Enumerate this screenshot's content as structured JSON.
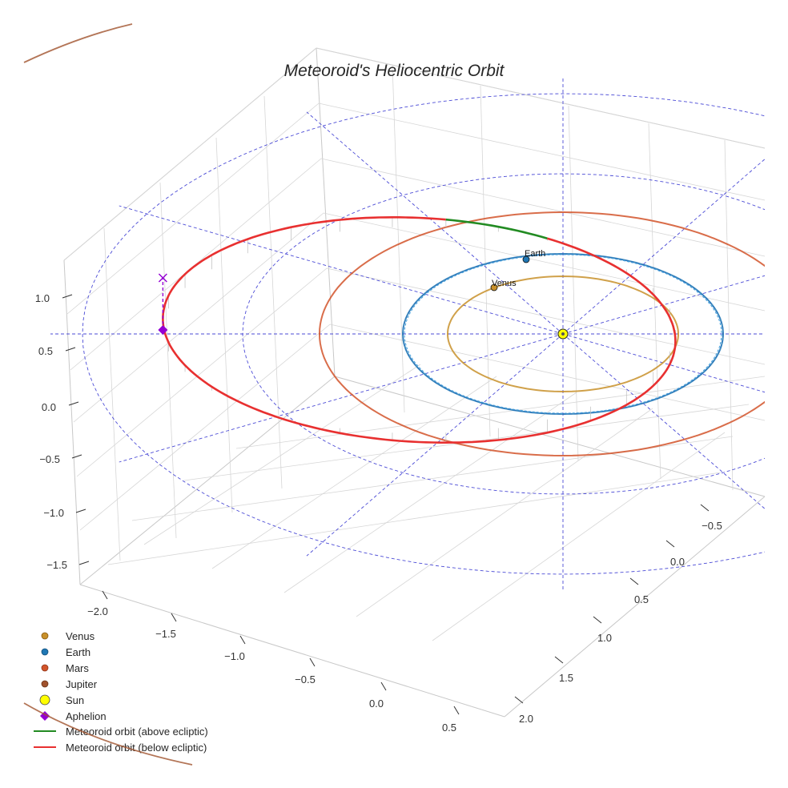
{
  "chart_data": {
    "type": "line",
    "projection": "3d",
    "title": "Meteoroid's Heliocentric Orbit",
    "axes": {
      "x": {
        "ticks": [
          "−2.0",
          "−1.5",
          "−1.0",
          "−0.5",
          "0.0",
          "0.5"
        ],
        "tick_values": [
          -2.0,
          -1.5,
          -1.0,
          -0.5,
          0.0,
          0.5
        ]
      },
      "y": {
        "ticks": [
          "−0.5",
          "0.0",
          "0.5",
          "1.0",
          "1.5",
          "2.0"
        ],
        "tick_values": [
          -0.5,
          0.0,
          0.5,
          1.0,
          1.5,
          2.0
        ]
      },
      "z": {
        "ticks": [
          "1.0",
          "0.5",
          "0.0",
          "−0.5",
          "−1.0",
          "−1.5"
        ],
        "tick_values": [
          1.0,
          0.5,
          0.0,
          -0.5,
          -1.0,
          -1.5
        ]
      }
    },
    "bodies": [
      {
        "name": "Venus",
        "orbit_radius_au": 0.72,
        "color": "#c8902a",
        "label": "Venus"
      },
      {
        "name": "Earth",
        "orbit_radius_au": 1.0,
        "color": "#1f77b4",
        "label": "Earth"
      },
      {
        "name": "Mars",
        "orbit_radius_au": 1.52,
        "color": "#d2542a"
      },
      {
        "name": "Jupiter",
        "orbit_radius_au": 5.2,
        "color": "#a0522d"
      }
    ],
    "sun": {
      "name": "Sun",
      "color": "#ffff00"
    },
    "meteoroid": {
      "semi_major_axis_au": 1.6,
      "eccentricity": 0.53,
      "perihelion_au": 0.75,
      "aphelion_au": 2.45,
      "above_ecliptic_color": "#228b22",
      "below_ecliptic_color": "#e83030"
    },
    "reference_grid": {
      "ecliptic_circle_radii_au": [
        1.0,
        2.0,
        3.0
      ],
      "radial_lines": 12
    },
    "legend": [
      {
        "label": "Venus",
        "marker": "circle",
        "color": "#c8902a"
      },
      {
        "label": "Earth",
        "marker": "circle",
        "color": "#1f77b4"
      },
      {
        "label": "Mars",
        "marker": "circle",
        "color": "#d2542a"
      },
      {
        "label": "Jupiter",
        "marker": "circle",
        "color": "#a0522d"
      },
      {
        "label": "Sun",
        "marker": "circle",
        "color": "#ffff00"
      },
      {
        "label": "Aphelion",
        "marker": "diamond",
        "color": "#9400d3"
      },
      {
        "label": "Meteoroid orbit (above ecliptic)",
        "marker": "line",
        "color": "#228b22"
      },
      {
        "label": "Meteoroid orbit (below ecliptic)",
        "marker": "line",
        "color": "#e83030"
      }
    ]
  }
}
